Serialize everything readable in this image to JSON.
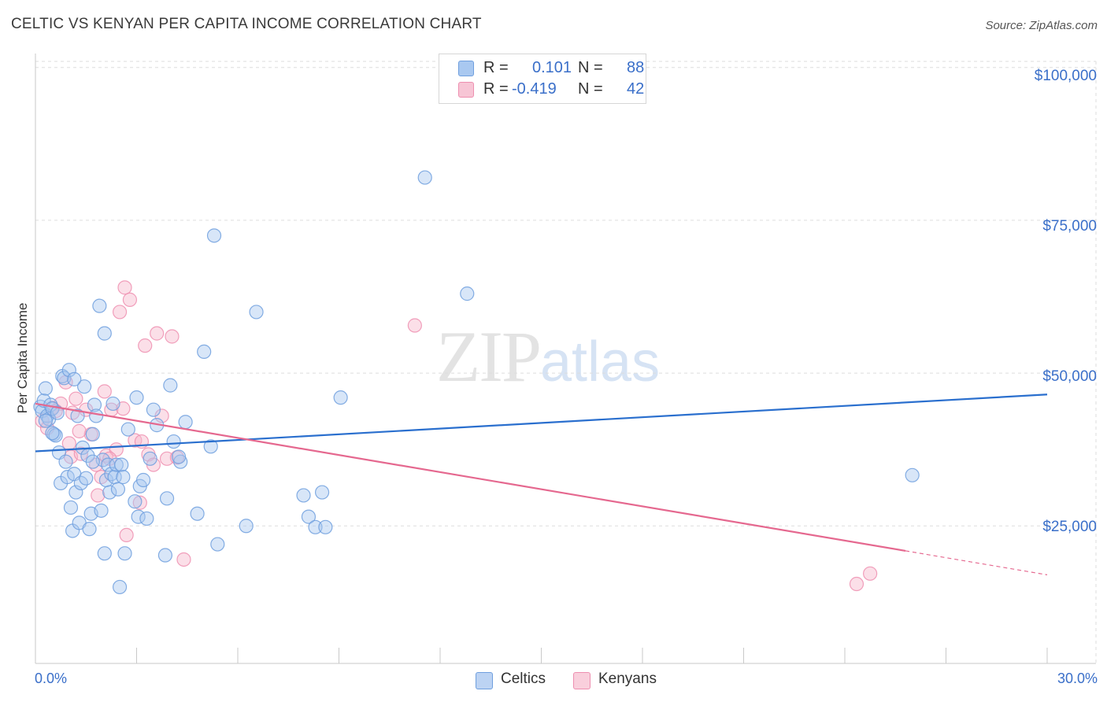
{
  "title": "CELTIC VS KENYAN PER CAPITA INCOME CORRELATION CHART",
  "source": "Source: ZipAtlas.com",
  "watermark": {
    "zip": "ZIP",
    "atlas": "atlas"
  },
  "colors": {
    "celtics_fill": "#a9c8f0",
    "celtics_stroke": "#6f9fde",
    "celtics_line": "#2a6fce",
    "kenyans_fill": "#f7b8cc",
    "kenyans_stroke": "#ee8fb0",
    "kenyans_line": "#e5688f",
    "axis_label": "#3a6fc9",
    "grid": "#dddddd"
  },
  "legend": {
    "rows": [
      {
        "r_label": "R =",
        "r_value": "0.101",
        "n_label": "N =",
        "n_value": "88"
      },
      {
        "r_label": "R =",
        "r_value": "-0.419",
        "n_label": "N =",
        "n_value": "42"
      }
    ]
  },
  "bottom_legend": {
    "celtics": "Celtics",
    "kenyans": "Kenyans"
  },
  "axes": {
    "x_min_label": "0.0%",
    "x_max_label": "30.0%",
    "y_title": "Per Capita Income",
    "y_ticks": [
      {
        "value": 25000,
        "label": "$25,000"
      },
      {
        "value": 50000,
        "label": "$50,000"
      },
      {
        "value": 75000,
        "label": "$75,000"
      },
      {
        "value": 100000,
        "label": "$100,000"
      }
    ]
  },
  "chart_data": {
    "type": "scatter",
    "title": "CELTIC VS KENYAN PER CAPITA INCOME CORRELATION CHART",
    "xlabel": "",
    "ylabel": "Per Capita Income",
    "xlim": [
      0,
      30
    ],
    "ylim": [
      2500,
      101000
    ],
    "grid": true,
    "legend_position": "top-center",
    "series": [
      {
        "name": "Celtics",
        "r": 0.101,
        "n": 88,
        "trend": {
          "x": [
            0,
            30
          ],
          "y": [
            37200,
            46500
          ],
          "dashed_from": null
        },
        "points": [
          [
            0.15,
            44500
          ],
          [
            0.2,
            43800
          ],
          [
            0.25,
            45500
          ],
          [
            0.3,
            47500
          ],
          [
            0.35,
            43000
          ],
          [
            0.4,
            42500
          ],
          [
            0.45,
            44800
          ],
          [
            0.5,
            44200
          ],
          [
            0.55,
            40000
          ],
          [
            0.6,
            39800
          ],
          [
            0.65,
            43500
          ],
          [
            0.7,
            37000
          ],
          [
            0.75,
            32000
          ],
          [
            0.8,
            49500
          ],
          [
            0.85,
            49200
          ],
          [
            0.9,
            35500
          ],
          [
            0.95,
            33000
          ],
          [
            1.0,
            50500
          ],
          [
            1.05,
            28000
          ],
          [
            1.1,
            24200
          ],
          [
            1.15,
            33500
          ],
          [
            1.2,
            30500
          ],
          [
            1.25,
            43000
          ],
          [
            1.3,
            25500
          ],
          [
            1.35,
            32000
          ],
          [
            1.4,
            37800
          ],
          [
            1.45,
            47800
          ],
          [
            1.5,
            32800
          ],
          [
            1.55,
            36500
          ],
          [
            1.6,
            24500
          ],
          [
            1.65,
            27000
          ],
          [
            1.7,
            40000
          ],
          [
            1.75,
            44800
          ],
          [
            1.8,
            43000
          ],
          [
            1.9,
            61000
          ],
          [
            1.95,
            27500
          ],
          [
            2.0,
            35800
          ],
          [
            2.05,
            20500
          ],
          [
            2.1,
            32500
          ],
          [
            2.15,
            35000
          ],
          [
            2.2,
            30500
          ],
          [
            2.25,
            33500
          ],
          [
            2.3,
            45000
          ],
          [
            2.35,
            33000
          ],
          [
            2.4,
            35000
          ],
          [
            2.45,
            31000
          ],
          [
            2.55,
            35000
          ],
          [
            2.6,
            33000
          ],
          [
            2.65,
            20500
          ],
          [
            2.75,
            40800
          ],
          [
            3.05,
            26500
          ],
          [
            3.1,
            31500
          ],
          [
            3.2,
            32500
          ],
          [
            3.3,
            26200
          ],
          [
            3.4,
            36000
          ],
          [
            3.5,
            44000
          ],
          [
            3.6,
            41500
          ],
          [
            3.85,
            20200
          ],
          [
            3.9,
            29500
          ],
          [
            4.3,
            35500
          ],
          [
            4.45,
            42000
          ],
          [
            4.8,
            27000
          ],
          [
            5.0,
            53500
          ],
          [
            6.25,
            25000
          ],
          [
            6.55,
            60000
          ],
          [
            7.95,
            30000
          ],
          [
            8.1,
            26500
          ],
          [
            8.3,
            24800
          ],
          [
            8.5,
            30500
          ],
          [
            8.6,
            24800
          ],
          [
            9.05,
            46000
          ],
          [
            2.05,
            56500
          ],
          [
            4.0,
            48000
          ],
          [
            3.0,
            46000
          ],
          [
            5.4,
            22000
          ],
          [
            2.5,
            15000
          ],
          [
            0.3,
            42200
          ],
          [
            0.5,
            40200
          ],
          [
            1.15,
            49000
          ],
          [
            4.1,
            38800
          ],
          [
            5.3,
            72500
          ],
          [
            11.55,
            82000
          ],
          [
            12.8,
            63000
          ],
          [
            26.0,
            33300
          ],
          [
            5.2,
            38000
          ],
          [
            2.95,
            29000
          ],
          [
            4.25,
            36300
          ],
          [
            1.7,
            35500
          ]
        ]
      },
      {
        "name": "Kenyans",
        "r": -0.419,
        "n": 42,
        "trend": {
          "x": [
            0,
            30
          ],
          "y": [
            45000,
            17000
          ],
          "dashed_from": 25.8
        },
        "points": [
          [
            0.2,
            42200
          ],
          [
            0.35,
            41000
          ],
          [
            0.5,
            44300
          ],
          [
            0.75,
            45000
          ],
          [
            0.9,
            48500
          ],
          [
            1.05,
            36300
          ],
          [
            1.2,
            45800
          ],
          [
            1.35,
            36800
          ],
          [
            1.5,
            44000
          ],
          [
            1.65,
            40000
          ],
          [
            1.8,
            35000
          ],
          [
            1.95,
            33000
          ],
          [
            2.1,
            36500
          ],
          [
            2.25,
            44000
          ],
          [
            2.4,
            37500
          ],
          [
            2.5,
            60000
          ],
          [
            2.65,
            64000
          ],
          [
            2.8,
            62000
          ],
          [
            2.95,
            39000
          ],
          [
            3.1,
            28800
          ],
          [
            3.25,
            54500
          ],
          [
            3.35,
            36700
          ],
          [
            3.5,
            35000
          ],
          [
            3.6,
            56500
          ],
          [
            3.75,
            43000
          ],
          [
            3.9,
            36000
          ],
          [
            4.05,
            56000
          ],
          [
            4.2,
            36200
          ],
          [
            4.4,
            19500
          ],
          [
            1.3,
            40500
          ],
          [
            1.85,
            30000
          ],
          [
            2.2,
            36000
          ],
          [
            2.7,
            23500
          ],
          [
            1.0,
            38500
          ],
          [
            11.25,
            57800
          ],
          [
            24.35,
            15500
          ],
          [
            24.75,
            17200
          ],
          [
            0.6,
            43800
          ],
          [
            1.1,
            43500
          ],
          [
            2.05,
            47000
          ],
          [
            2.6,
            44200
          ],
          [
            3.15,
            38800
          ]
        ]
      }
    ]
  }
}
